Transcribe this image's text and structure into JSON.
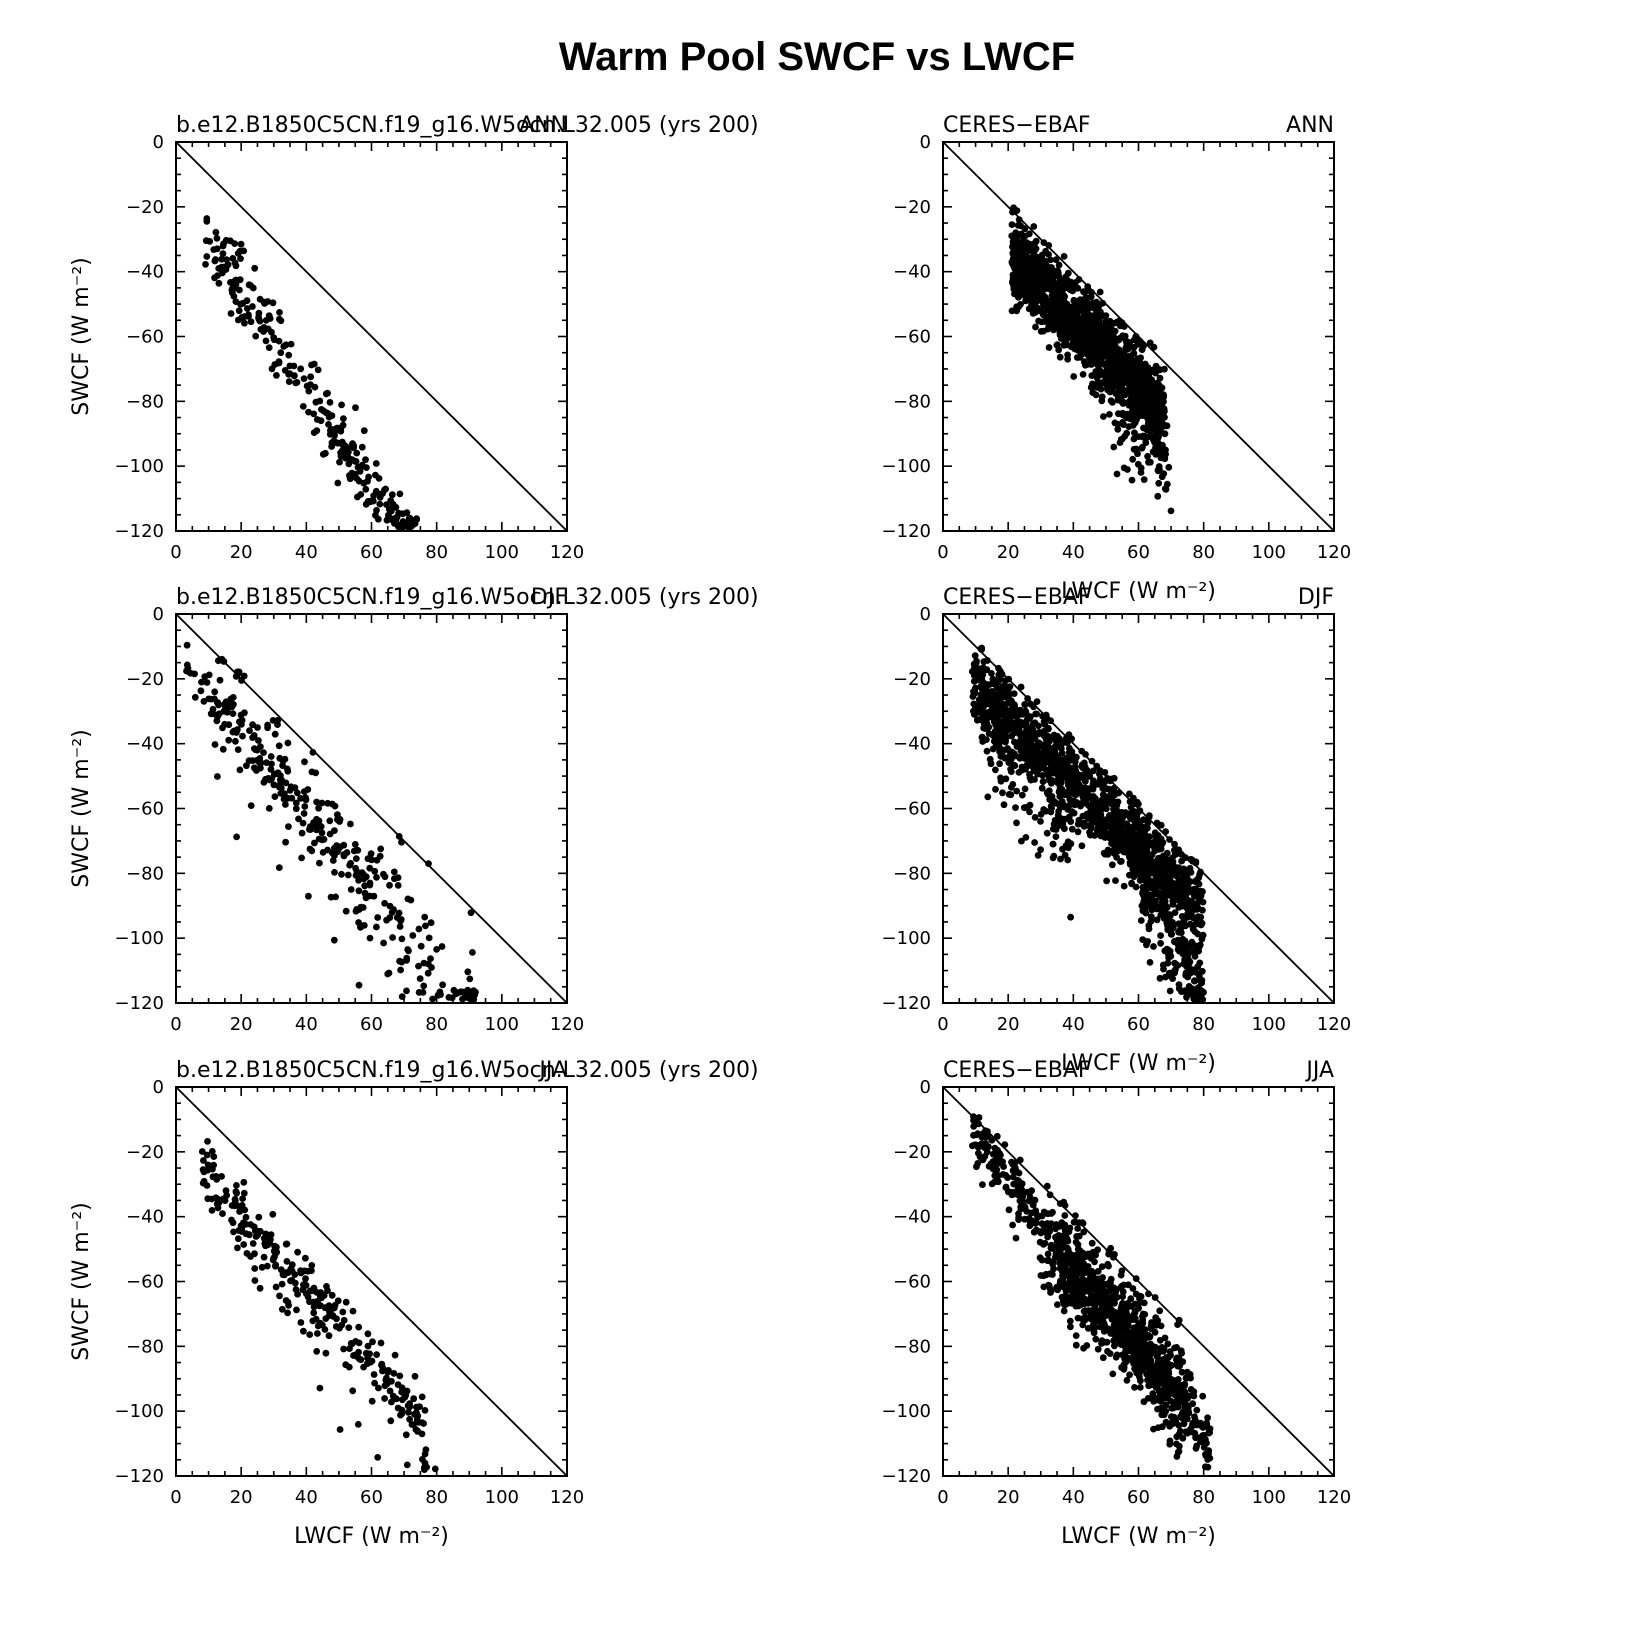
{
  "figure_title": "Warm Pool SWCF vs LWCF",
  "chart_data": [
    {
      "type": "scatter",
      "seed": 11,
      "left_label": "b.e12.B1850C5CN.f19_g16.W5ocn.L32.005 (yrs 200)",
      "right_label": "ANN",
      "xlabel": "",
      "ylabel": "SWCF (W m⁻²)",
      "xlim": [
        0,
        120
      ],
      "ylim": [
        -120,
        0
      ],
      "xticks": [
        "0",
        "20",
        "40",
        "60",
        "80",
        "100",
        "120"
      ],
      "yticks": [
        "0",
        "−20",
        "−40",
        "−60",
        "−80",
        "−100",
        "−120"
      ],
      "reference_line": "y = -x",
      "point_clusters": [
        {
          "n": 260,
          "x_range": [
            9,
            74
          ],
          "slope": -1.55,
          "intercept": -14,
          "spread": 5
        },
        {
          "n": 16,
          "x_range": [
            50,
            72
          ],
          "slope": -1.7,
          "intercept": -4,
          "spread": 7
        }
      ]
    },
    {
      "type": "scatter",
      "seed": 23,
      "left_label": "CERES−EBAF",
      "right_label": "ANN",
      "xlabel": "LWCF (W m⁻²)",
      "ylabel": "",
      "xlim": [
        0,
        120
      ],
      "ylim": [
        -120,
        0
      ],
      "xticks": [
        "0",
        "20",
        "40",
        "60",
        "80",
        "100",
        "120"
      ],
      "yticks": [
        "0",
        "−20",
        "−40",
        "−60",
        "−80",
        "−100",
        "−120"
      ],
      "reference_line": "y = -x",
      "point_clusters": [
        {
          "n": 1400,
          "x_range": [
            21,
            68
          ],
          "slope": -1.05,
          "intercept": -13,
          "spread": 6
        },
        {
          "n": 150,
          "x_range": [
            45,
            70
          ],
          "slope": -1.4,
          "intercept": -2,
          "spread": 9
        }
      ]
    },
    {
      "type": "scatter",
      "seed": 37,
      "left_label": "b.e12.B1850C5CN.f19_g16.W5ocn.L32.005 (yrs 200)",
      "right_label": "DJF",
      "xlabel": "",
      "ylabel": "SWCF (W m⁻²)",
      "xlim": [
        0,
        120
      ],
      "ylim": [
        -120,
        0
      ],
      "xticks": [
        "0",
        "20",
        "40",
        "60",
        "80",
        "100",
        "120"
      ],
      "yticks": [
        "0",
        "−20",
        "−40",
        "−60",
        "−80",
        "−100",
        "−120"
      ],
      "reference_line": "y = -x",
      "point_clusters": [
        {
          "n": 120,
          "x_range": [
            3,
            60
          ],
          "slope": -1.25,
          "intercept": -11,
          "spread": 4
        },
        {
          "n": 230,
          "x_range": [
            10,
            92
          ],
          "slope": -1.27,
          "intercept": -10,
          "spread": 12
        }
      ]
    },
    {
      "type": "scatter",
      "seed": 41,
      "left_label": "CERES−EBAF",
      "right_label": "DJF",
      "xlabel": "LWCF (W m⁻²)",
      "ylabel": "",
      "xlim": [
        0,
        120
      ],
      "ylim": [
        -120,
        0
      ],
      "xticks": [
        "0",
        "20",
        "40",
        "60",
        "80",
        "100",
        "120"
      ],
      "yticks": [
        "0",
        "−20",
        "−40",
        "−60",
        "−80",
        "−100",
        "−120"
      ],
      "reference_line": "y = -x",
      "point_clusters": [
        {
          "n": 1200,
          "x_range": [
            9,
            80
          ],
          "slope": -1.0,
          "intercept": -12,
          "spread": 6
        },
        {
          "n": 260,
          "x_range": [
            58,
            80
          ],
          "slope": -2.3,
          "intercept": 62,
          "spread": 9
        },
        {
          "n": 140,
          "x_range": [
            10,
            40
          ],
          "slope": -1.3,
          "intercept": -20,
          "spread": 9
        }
      ]
    },
    {
      "type": "scatter",
      "seed": 53,
      "left_label": "b.e12.B1850C5CN.f19_g16.W5ocn.L32.005 (yrs 200)",
      "right_label": "JJA",
      "xlabel": "LWCF (W m⁻²)",
      "ylabel": "SWCF (W m⁻²)",
      "xlim": [
        0,
        120
      ],
      "ylim": [
        -120,
        0
      ],
      "xticks": [
        "0",
        "20",
        "40",
        "60",
        "80",
        "100",
        "120"
      ],
      "yticks": [
        "0",
        "−20",
        "−40",
        "−60",
        "−80",
        "−100",
        "−120"
      ],
      "reference_line": "y = -x",
      "point_clusters": [
        {
          "n": 280,
          "x_range": [
            8,
            78
          ],
          "slope": -1.15,
          "intercept": -17,
          "spread": 5
        },
        {
          "n": 18,
          "x_range": [
            24,
            80
          ],
          "slope": -1.25,
          "intercept": -32,
          "spread": 12
        }
      ]
    },
    {
      "type": "scatter",
      "seed": 67,
      "left_label": "CERES−EBAF",
      "right_label": "JJA",
      "xlabel": "LWCF (W m⁻²)",
      "ylabel": "",
      "xlim": [
        0,
        120
      ],
      "ylim": [
        -120,
        0
      ],
      "xticks": [
        "0",
        "20",
        "40",
        "60",
        "80",
        "100",
        "120"
      ],
      "yticks": [
        "0",
        "−20",
        "−40",
        "−60",
        "−80",
        "−100",
        "−120"
      ],
      "reference_line": "y = -x",
      "point_clusters": [
        {
          "n": 500,
          "x_range": [
            9,
            82
          ],
          "slope": -1.3,
          "intercept": -3,
          "spread": 5
        },
        {
          "n": 550,
          "x_range": [
            35,
            75
          ],
          "slope": -1.2,
          "intercept": -7,
          "spread": 8
        },
        {
          "n": 120,
          "x_range": [
            30,
            62
          ],
          "slope": -0.6,
          "intercept": -38,
          "spread": 6
        }
      ]
    }
  ]
}
